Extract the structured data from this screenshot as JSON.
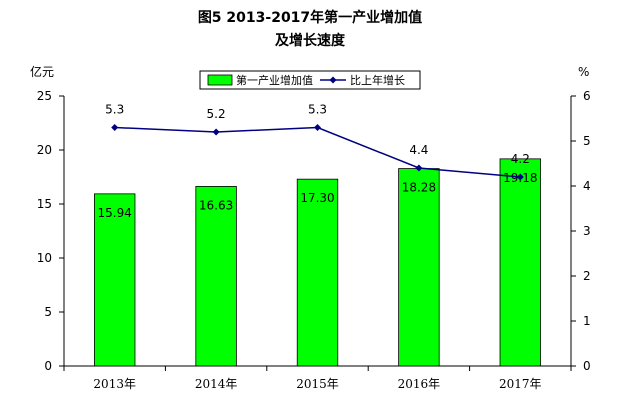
{
  "chart_data": {
    "type": "bar+line",
    "title": "图5  2013-2017年第一产业增加值",
    "subtitle": "及增长速度",
    "y_left_unit": "亿元",
    "y_right_unit": "%",
    "categories": [
      "2013年",
      "2014年",
      "2015年",
      "2016年",
      "2017年"
    ],
    "series": [
      {
        "name": "第一产业增加值",
        "type": "bar",
        "axis": "left",
        "values": [
          15.94,
          16.63,
          17.3,
          18.28,
          19.18
        ],
        "labels": [
          "15.94",
          "16.63",
          "17.30",
          "18.28",
          "19.18"
        ],
        "color": "#00ff00"
      },
      {
        "name": "比上年增长",
        "type": "line",
        "axis": "right",
        "values": [
          5.3,
          5.2,
          5.3,
          4.4,
          4.2
        ],
        "labels": [
          "5.3",
          "5.2",
          "5.3",
          "4.4",
          "4.2"
        ],
        "color": "#000080"
      }
    ],
    "y_left": {
      "min": 0,
      "max": 25,
      "ticks": [
        "0",
        "5",
        "10",
        "15",
        "20",
        "25"
      ]
    },
    "y_right": {
      "min": 0,
      "max": 6,
      "ticks": [
        "0",
        "1",
        "2",
        "3",
        "4",
        "5",
        "6"
      ]
    },
    "legend_position": "top",
    "grid": false
  }
}
